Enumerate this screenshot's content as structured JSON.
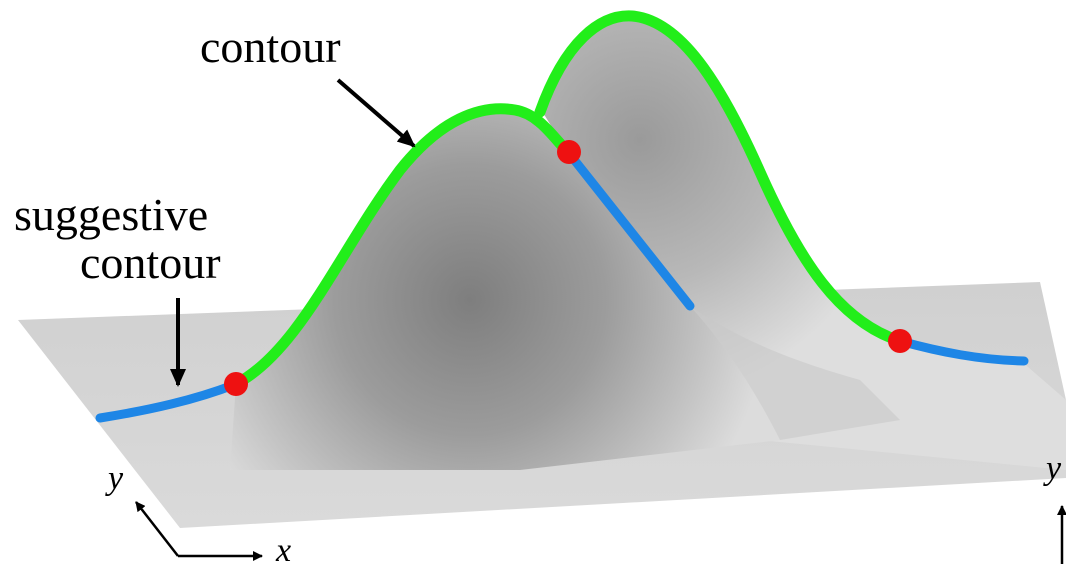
{
  "labels": {
    "contour": "contour",
    "suggestive_line1": "suggestive",
    "suggestive_line2": "contour",
    "axis_y_left": "y",
    "axis_x": "x",
    "axis_y_right": "y"
  },
  "colors": {
    "contour": "#22ee1a",
    "suggestive_contour": "#1e86e6",
    "point": "#ee1111",
    "plane": "#d4d4d4",
    "surface_light": "#e6e6e6",
    "surface_dark": "#7a7a7a",
    "arrow": "#000000"
  }
}
